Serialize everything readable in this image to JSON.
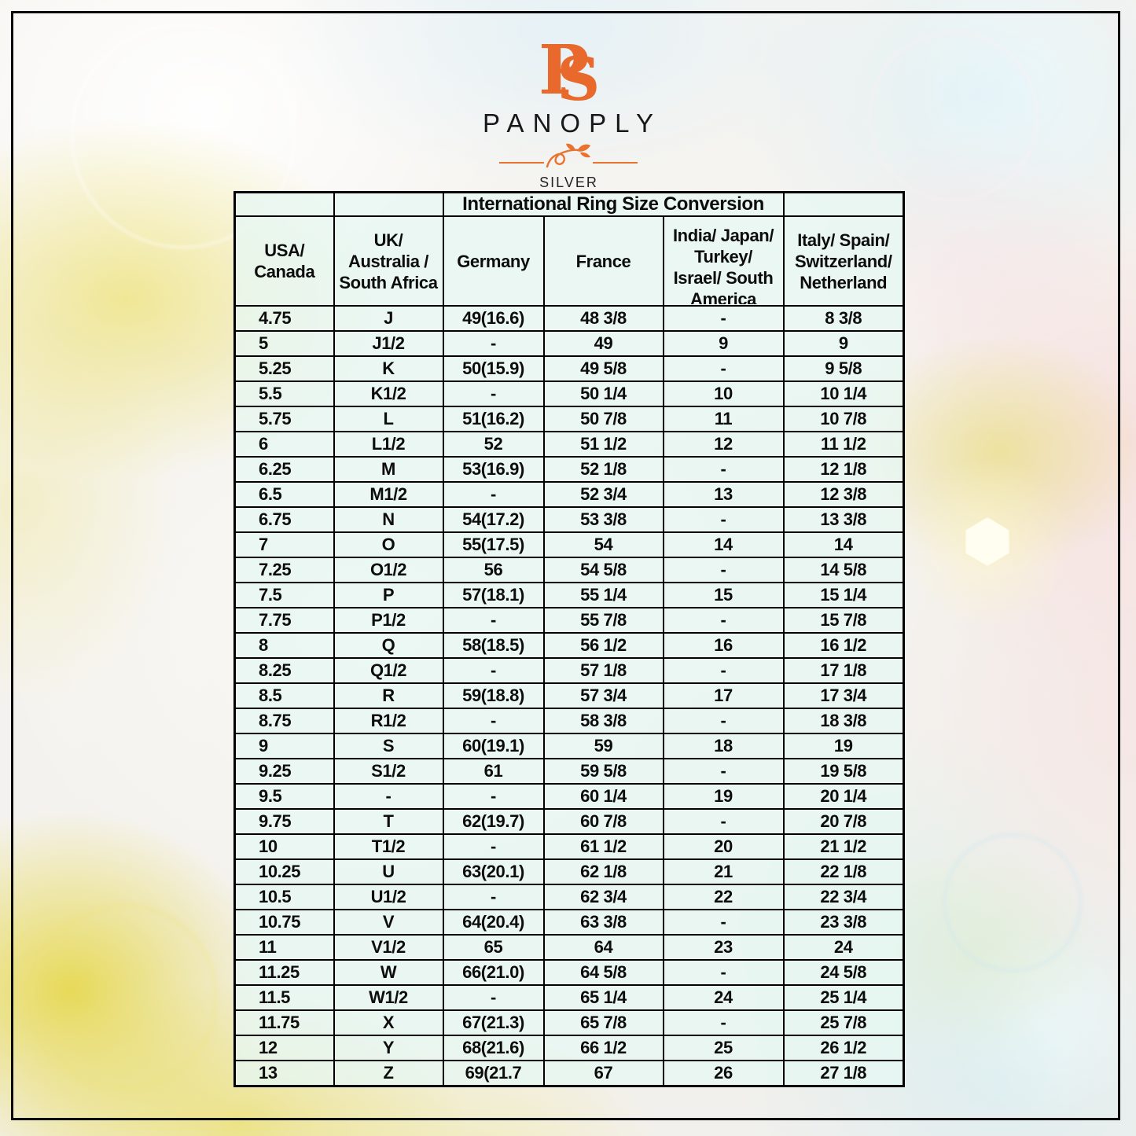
{
  "logo": {
    "monogram_p": "P",
    "monogram_s": "S",
    "brand": "PANOPLY",
    "subtitle": "SILVER"
  },
  "table": {
    "title": "International Ring Size Conversion",
    "columns": [
      {
        "id": "usa-canada",
        "label": "USA/\nCanada"
      },
      {
        "id": "uk-australia-south-africa",
        "label": "UK/\nAustralia /\nSouth Africa"
      },
      {
        "id": "germany",
        "label": "Germany"
      },
      {
        "id": "france",
        "label": "France"
      },
      {
        "id": "india-japan-turkey-israel-south-america",
        "label": "India/ Japan/\nTurkey/\nIsrael/ South\nAmerica",
        "clip": true
      },
      {
        "id": "italy-spain-switzerland-netherland",
        "label": "Italy/ Spain/\nSwitzerland/\nNetherland"
      }
    ],
    "rows": [
      [
        "4.75",
        "J",
        "49(16.6)",
        "48 3/8",
        "-",
        "8 3/8"
      ],
      [
        "5",
        "J1/2",
        "-",
        "49",
        "9",
        "9"
      ],
      [
        "5.25",
        "K",
        "50(15.9)",
        "49 5/8",
        "-",
        "9 5/8"
      ],
      [
        "5.5",
        "K1/2",
        "-",
        "50 1/4",
        "10",
        "10 1/4"
      ],
      [
        "5.75",
        "L",
        "51(16.2)",
        "50 7/8",
        "11",
        "10 7/8"
      ],
      [
        "6",
        "L1/2",
        "52",
        "51 1/2",
        "12",
        "11 1/2"
      ],
      [
        "6.25",
        "M",
        "53(16.9)",
        "52 1/8",
        "-",
        "12 1/8"
      ],
      [
        "6.5",
        "M1/2",
        "-",
        "52 3/4",
        "13",
        "12 3/8"
      ],
      [
        "6.75",
        "N",
        "54(17.2)",
        "53 3/8",
        "-",
        "13 3/8"
      ],
      [
        "7",
        "O",
        "55(17.5)",
        "54",
        "14",
        "14"
      ],
      [
        "7.25",
        "O1/2",
        "56",
        "54 5/8",
        "-",
        "14 5/8"
      ],
      [
        "7.5",
        "P",
        "57(18.1)",
        "55 1/4",
        "15",
        "15 1/4"
      ],
      [
        "7.75",
        "P1/2",
        "-",
        "55 7/8",
        "-",
        "15 7/8"
      ],
      [
        "8",
        "Q",
        "58(18.5)",
        "56 1/2",
        "16",
        "16 1/2"
      ],
      [
        "8.25",
        "Q1/2",
        "-",
        "57 1/8",
        "-",
        "17 1/8"
      ],
      [
        "8.5",
        "R",
        "59(18.8)",
        "57 3/4",
        "17",
        "17 3/4"
      ],
      [
        "8.75",
        "R1/2",
        "-",
        "58 3/8",
        "-",
        "18 3/8"
      ],
      [
        "9",
        "S",
        "60(19.1)",
        "59",
        "18",
        "19"
      ],
      [
        "9.25",
        "S1/2",
        "61",
        "59 5/8",
        "-",
        "19 5/8"
      ],
      [
        "9.5",
        "-",
        "-",
        "60 1/4",
        "19",
        "20 1/4"
      ],
      [
        "9.75",
        "T",
        "62(19.7)",
        "60 7/8",
        "-",
        "20 7/8"
      ],
      [
        "10",
        "T1/2",
        "-",
        "61 1/2",
        "20",
        "21 1/2"
      ],
      [
        "10.25",
        "U",
        "63(20.1)",
        "62 1/8",
        "21",
        "22 1/8"
      ],
      [
        "10.5",
        "U1/2",
        "-",
        "62 3/4",
        "22",
        "22 3/4"
      ],
      [
        "10.75",
        "V",
        "64(20.4)",
        "63 3/8",
        "-",
        "23 3/8"
      ],
      [
        "11",
        "V1/2",
        "65",
        "64",
        "23",
        "24"
      ],
      [
        "11.25",
        "W",
        "66(21.0)",
        "64 5/8",
        "-",
        "24 5/8"
      ],
      [
        "11.5",
        "W1/2",
        "-",
        "65 1/4",
        "24",
        "25 1/4"
      ],
      [
        "11.75",
        "X",
        "67(21.3)",
        "65 7/8",
        "-",
        "25 7/8"
      ],
      [
        "12",
        "Y",
        "68(21.6)",
        "66 1/2",
        "25",
        "26 1/2"
      ],
      [
        "13",
        "Z",
        "69(21.7",
        "67",
        "26",
        "27 1/8"
      ]
    ]
  },
  "colors": {
    "accent_orange": "#E8692B",
    "table_border": "#000000",
    "cell_tint": "#E7F7F2"
  }
}
